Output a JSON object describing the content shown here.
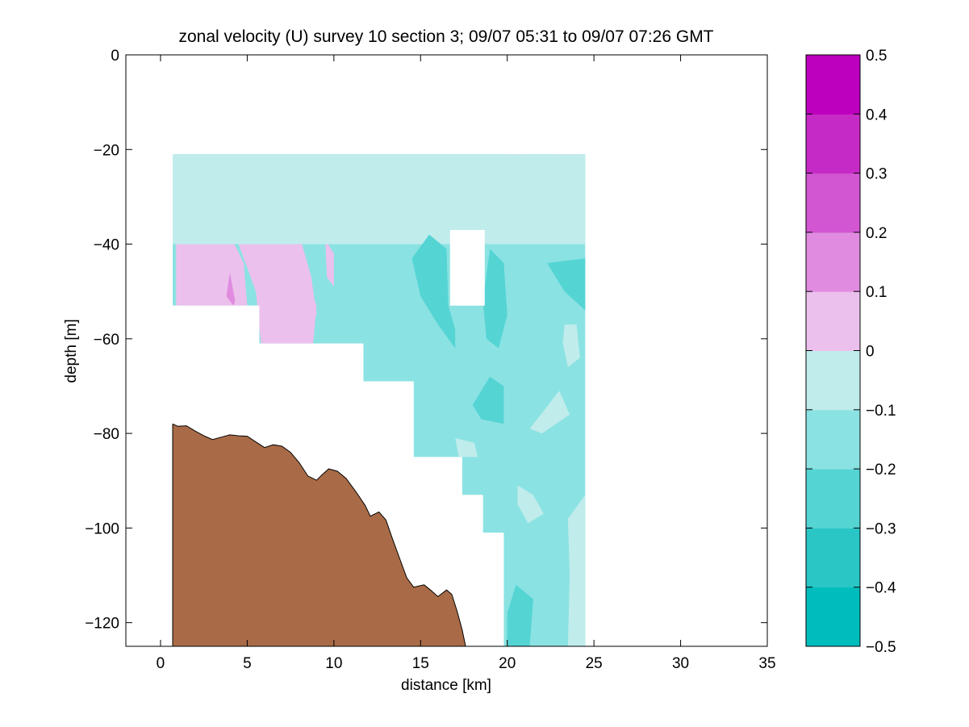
{
  "figure": {
    "background": "#ffffff"
  },
  "chart_data": {
    "type": "heatmap",
    "subtype": "filled-contour section",
    "title": "zonal velocity (U) survey 10 section 3; 09/07 05:31 to 09/07 07:26 GMT",
    "xlabel": "distance [km]",
    "ylabel": "depth [m]",
    "xlim": [
      -2,
      35
    ],
    "ylim": [
      -125,
      0
    ],
    "xticks": [
      0,
      5,
      10,
      15,
      20,
      25,
      30,
      35
    ],
    "yticks": [
      0,
      -20,
      -40,
      -60,
      -80,
      -100,
      -120
    ],
    "grid": false,
    "colorbar": {
      "location": "right",
      "levels": [
        -0.5,
        -0.4,
        -0.3,
        -0.2,
        -0.1,
        0,
        0.1,
        0.2,
        0.3,
        0.4,
        0.5
      ],
      "colors": [
        "#00bdbd",
        "#2ac6c6",
        "#55d4d4",
        "#8be2e2",
        "#c0ecec",
        "#ecc0ec",
        "#e08be0",
        "#d255d2",
        "#c62ac6",
        "#bd00bd"
      ]
    },
    "data_region": {
      "x_range": [
        0.7,
        24.5
      ],
      "top_depth": -21,
      "data_bottom_profile": [
        [
          0.7,
          -53
        ],
        [
          5.7,
          -53
        ],
        [
          5.7,
          -61
        ],
        [
          8.7,
          -61
        ],
        [
          8.7,
          -61
        ],
        [
          11.7,
          -61
        ],
        [
          11.7,
          -69
        ],
        [
          14.6,
          -69
        ],
        [
          14.6,
          -85
        ],
        [
          17.4,
          -85
        ],
        [
          17.4,
          -93
        ],
        [
          18.6,
          -93
        ],
        [
          18.6,
          -101
        ],
        [
          19.8,
          -101
        ],
        [
          19.8,
          -125
        ],
        [
          24.5,
          -125
        ]
      ],
      "gap_rect": {
        "x": [
          16.7,
          18.7
        ],
        "depth": [
          -37,
          -53
        ]
      },
      "base_value": -0.15,
      "value_patches": [
        {
          "value": 0.05,
          "polygon": [
            [
              1,
              -31
            ],
            [
              2,
              -28
            ],
            [
              3,
              -33
            ],
            [
              4,
              -38
            ],
            [
              4.8,
              -44
            ],
            [
              5,
              -53
            ],
            [
              0.9,
              -53
            ],
            [
              0.9,
              -36
            ]
          ]
        },
        {
          "value": 0.05,
          "polygon": [
            [
              4,
              -31
            ],
            [
              5,
              -22
            ],
            [
              6,
              -27
            ],
            [
              7,
              -34
            ],
            [
              8,
              -44
            ],
            [
              9,
              -53
            ],
            [
              8.8,
              -61
            ],
            [
              5.8,
              -61
            ],
            [
              5.5,
              -50
            ],
            [
              4.5,
              -40
            ]
          ]
        },
        {
          "value": 0.05,
          "polygon": [
            [
              7,
              -40
            ],
            [
              8,
              -38
            ],
            [
              8.7,
              -47
            ],
            [
              9,
              -55
            ],
            [
              8,
              -58
            ],
            [
              7,
              -48
            ]
          ]
        },
        {
          "value": 0.05,
          "polygon": [
            [
              9.5,
              -39
            ],
            [
              10,
              -42
            ],
            [
              10,
              -49
            ],
            [
              9.6,
              -47
            ]
          ]
        },
        {
          "value": 0.05,
          "polygon": [
            [
              20,
              -21
            ],
            [
              21,
              -21
            ],
            [
              21.5,
              -26
            ],
            [
              22,
              -33
            ],
            [
              21.5,
              -35
            ],
            [
              20.5,
              -30
            ]
          ]
        },
        {
          "value": 0.05,
          "polygon": [
            [
              22.7,
              -21
            ],
            [
              24.3,
              -21
            ],
            [
              24.3,
              -34
            ],
            [
              23.5,
              -30
            ],
            [
              22.3,
              -28
            ]
          ]
        },
        {
          "value": 0.05,
          "polygon": [
            [
              14.2,
              -27
            ],
            [
              14.8,
              -28
            ],
            [
              14.6,
              -31
            ],
            [
              14.1,
              -30
            ]
          ]
        },
        {
          "value": 0.15,
          "polygon": [
            [
              3.8,
              -51
            ],
            [
              4,
              -46
            ],
            [
              4.3,
              -52
            ],
            [
              4.2,
              -53
            ]
          ]
        },
        {
          "value": -0.05,
          "polygon": [
            [
              0.7,
              -21
            ],
            [
              24.5,
              -21
            ],
            [
              24.5,
              -40
            ],
            [
              0.7,
              -40
            ]
          ]
        },
        {
          "value": -0.25,
          "polygon": [
            [
              14.5,
              -43
            ],
            [
              15.5,
              -38
            ],
            [
              16.5,
              -41
            ],
            [
              16.6,
              -53
            ],
            [
              17,
              -58
            ],
            [
              17,
              -62
            ],
            [
              16,
              -57
            ],
            [
              15,
              -51
            ]
          ]
        },
        {
          "value": -0.25,
          "polygon": [
            [
              19,
              -41
            ],
            [
              19.8,
              -44
            ],
            [
              20,
              -55
            ],
            [
              19.5,
              -62
            ],
            [
              18.8,
              -60
            ],
            [
              18.6,
              -52
            ]
          ]
        },
        {
          "value": -0.25,
          "polygon": [
            [
              22.3,
              -44
            ],
            [
              24.5,
              -43
            ],
            [
              24.5,
              -54
            ],
            [
              23.3,
              -50
            ]
          ]
        },
        {
          "value": -0.25,
          "polygon": [
            [
              18,
              -74
            ],
            [
              19,
              -68
            ],
            [
              19.8,
              -70
            ],
            [
              19.8,
              -78
            ],
            [
              18.5,
              -77
            ]
          ]
        },
        {
          "value": -0.25,
          "polygon": [
            [
              20.5,
              -112
            ],
            [
              21.5,
              -115
            ],
            [
              21.3,
              -125
            ],
            [
              20,
              -125
            ],
            [
              20,
              -118
            ]
          ]
        },
        {
          "value": -0.05,
          "polygon": [
            [
              23.3,
              -57
            ],
            [
              24,
              -57
            ],
            [
              24.2,
              -64
            ],
            [
              23.5,
              -66
            ],
            [
              23.2,
              -61
            ]
          ]
        },
        {
          "value": -0.05,
          "polygon": [
            [
              21.3,
              -79
            ],
            [
              23,
              -71
            ],
            [
              23.6,
              -76
            ],
            [
              22,
              -80
            ]
          ]
        },
        {
          "value": -0.05,
          "polygon": [
            [
              20.6,
              -91
            ],
            [
              21.5,
              -93
            ],
            [
              22.1,
              -97
            ],
            [
              21.2,
              -99
            ],
            [
              20.6,
              -95
            ]
          ]
        },
        {
          "value": -0.05,
          "polygon": [
            [
              23.5,
              -98
            ],
            [
              24.5,
              -93
            ],
            [
              24.5,
              -125
            ],
            [
              23.5,
              -125
            ],
            [
              23.6,
              -110
            ]
          ]
        },
        {
          "value": -0.05,
          "polygon": [
            [
              17,
              -81
            ],
            [
              18.1,
              -82
            ],
            [
              18.3,
              -85
            ],
            [
              17.2,
              -85
            ]
          ]
        }
      ]
    },
    "bathymetry": {
      "color": "#a96b47",
      "profile": [
        [
          0.7,
          -78
        ],
        [
          1.0,
          -78.5
        ],
        [
          1.5,
          -78.4
        ],
        [
          2.0,
          -79.5
        ],
        [
          2.5,
          -80.5
        ],
        [
          3.0,
          -81.3
        ],
        [
          3.5,
          -80.8
        ],
        [
          4.0,
          -80.3
        ],
        [
          4.5,
          -80.5
        ],
        [
          5.0,
          -80.6
        ],
        [
          5.5,
          -81.8
        ],
        [
          6.0,
          -83.0
        ],
        [
          6.5,
          -82.4
        ],
        [
          7.0,
          -82.7
        ],
        [
          7.5,
          -84.0
        ],
        [
          8.0,
          -86.2
        ],
        [
          8.5,
          -89.0
        ],
        [
          9.0,
          -89.9
        ],
        [
          9.3,
          -88.8
        ],
        [
          9.7,
          -87.5
        ],
        [
          10.2,
          -88.0
        ],
        [
          10.7,
          -89.5
        ],
        [
          11.3,
          -92.5
        ],
        [
          11.8,
          -95.2
        ],
        [
          12.1,
          -97.5
        ],
        [
          12.6,
          -96.6
        ],
        [
          13.0,
          -98.3
        ],
        [
          13.4,
          -102.5
        ],
        [
          13.8,
          -106.5
        ],
        [
          14.2,
          -110.5
        ],
        [
          14.6,
          -112.5
        ],
        [
          15.2,
          -112.0
        ],
        [
          15.6,
          -113.2
        ],
        [
          16.0,
          -114.5
        ],
        [
          16.5,
          -113.1
        ],
        [
          16.8,
          -114.0
        ],
        [
          17.1,
          -117.5
        ],
        [
          17.4,
          -121.5
        ],
        [
          17.6,
          -125
        ]
      ]
    }
  }
}
